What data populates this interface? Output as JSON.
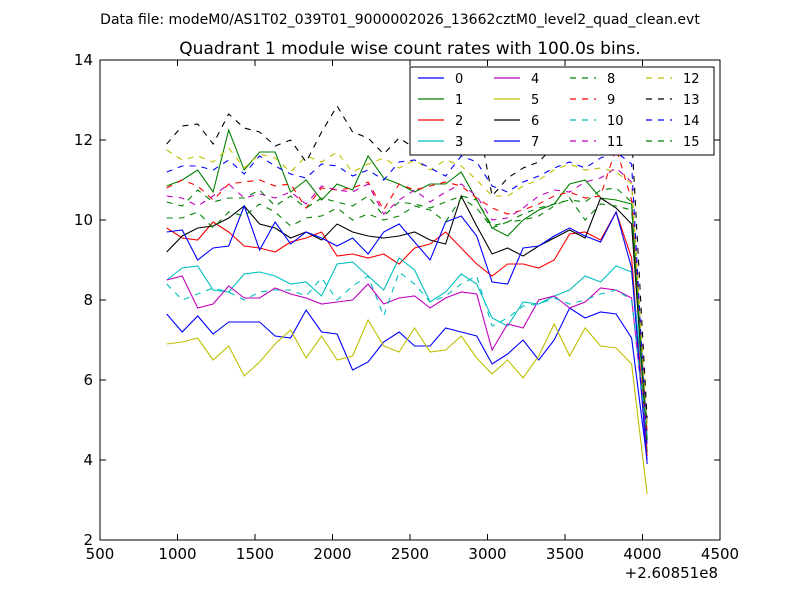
{
  "chart_data": {
    "type": "line",
    "suptitle": "Data file: modeM0/AS1T02_039T01_9000002026_13662cztM0_level2_quad_clean.evt",
    "title": "Quadrant 1 module wise count rates with 100.0s bins.",
    "xlabel": "",
    "ylabel": "",
    "xlim": [
      500,
      4500
    ],
    "ylim": [
      2,
      14
    ],
    "xticks": [
      500,
      1000,
      1500,
      2000,
      2500,
      3000,
      3500,
      4000,
      4500
    ],
    "yticks": [
      2,
      4,
      6,
      8,
      10,
      12,
      14
    ],
    "x_offset_label": "+2.60851e8",
    "legend_position": "top-right",
    "x": [
      930,
      1030,
      1130,
      1230,
      1330,
      1430,
      1530,
      1630,
      1730,
      1830,
      1930,
      2030,
      2130,
      2230,
      2330,
      2430,
      2530,
      2630,
      2730,
      2830,
      2930,
      3030,
      3130,
      3230,
      3330,
      3430,
      3530,
      3630,
      3730,
      3830,
      3930,
      4030
    ],
    "series": [
      {
        "name": "0",
        "color": "#0000ff",
        "dash": "solid",
        "values": [
          7.65,
          7.2,
          7.6,
          7.15,
          7.45,
          7.45,
          7.45,
          7.1,
          7.05,
          7.75,
          7.2,
          7.15,
          6.25,
          6.45,
          6.95,
          7.2,
          6.85,
          6.85,
          7.3,
          7.2,
          7.1,
          6.4,
          6.65,
          7.0,
          6.5,
          7.0,
          7.8,
          7.55,
          7.7,
          7.65,
          7.05,
          4.0
        ]
      },
      {
        "name": "1",
        "color": "#008000",
        "dash": "solid",
        "values": [
          10.85,
          11.0,
          11.25,
          10.7,
          12.25,
          11.25,
          11.7,
          11.7,
          10.7,
          11.0,
          10.5,
          10.9,
          10.75,
          11.6,
          11.05,
          10.9,
          10.7,
          10.9,
          10.9,
          11.2,
          10.5,
          9.8,
          9.6,
          10.0,
          10.25,
          10.4,
          10.9,
          11.0,
          10.55,
          10.5,
          10.4,
          4.2
        ]
      },
      {
        "name": "2",
        "color": "#ff0000",
        "dash": "solid",
        "values": [
          9.8,
          9.55,
          9.5,
          9.95,
          9.7,
          9.35,
          9.3,
          9.2,
          9.45,
          9.55,
          9.7,
          9.1,
          9.15,
          9.05,
          9.15,
          8.9,
          9.3,
          9.4,
          9.7,
          9.3,
          8.9,
          8.6,
          8.9,
          8.9,
          8.8,
          9.0,
          9.65,
          9.7,
          9.5,
          10.2,
          9.05,
          4.1
        ]
      },
      {
        "name": "3",
        "color": "#00bfbf",
        "dash": "solid",
        "values": [
          8.5,
          8.8,
          8.85,
          8.25,
          8.2,
          8.65,
          8.7,
          8.6,
          8.4,
          8.45,
          8.1,
          8.9,
          8.95,
          8.6,
          8.25,
          9.05,
          8.75,
          7.95,
          8.2,
          8.65,
          8.4,
          7.55,
          7.35,
          7.95,
          7.9,
          8.1,
          8.25,
          8.6,
          8.45,
          8.85,
          8.7,
          5.0
        ]
      },
      {
        "name": "4",
        "color": "#bf00bf",
        "dash": "solid",
        "values": [
          8.5,
          8.6,
          7.8,
          7.9,
          8.35,
          8.05,
          8.05,
          8.3,
          8.15,
          8.05,
          7.9,
          7.95,
          8.0,
          8.4,
          7.9,
          8.05,
          8.1,
          7.8,
          8.05,
          8.2,
          8.15,
          6.75,
          7.4,
          7.3,
          8.0,
          8.1,
          7.8,
          7.95,
          8.3,
          8.25,
          8.05,
          4.4
        ]
      },
      {
        "name": "5",
        "color": "#bfbf00",
        "dash": "solid",
        "values": [
          6.9,
          6.95,
          7.05,
          6.5,
          6.85,
          6.1,
          6.45,
          6.9,
          7.25,
          6.55,
          7.1,
          6.5,
          6.6,
          7.5,
          6.85,
          6.7,
          7.3,
          6.7,
          6.75,
          7.1,
          6.55,
          6.15,
          6.5,
          6.05,
          6.6,
          7.4,
          6.6,
          7.3,
          6.85,
          6.8,
          6.4,
          3.15
        ]
      },
      {
        "name": "6",
        "color": "#000000",
        "dash": "solid",
        "values": [
          9.2,
          9.6,
          9.8,
          9.85,
          10.05,
          10.35,
          9.9,
          9.8,
          9.55,
          9.7,
          9.5,
          9.9,
          9.7,
          9.6,
          9.55,
          9.6,
          9.7,
          9.5,
          9.4,
          10.6,
          9.85,
          9.15,
          9.3,
          9.1,
          9.35,
          9.55,
          9.75,
          9.55,
          10.55,
          10.3,
          9.9,
          4.5
        ]
      },
      {
        "name": "7",
        "color": "#0000ff",
        "dash": "solid",
        "values": [
          9.7,
          9.75,
          9.0,
          9.3,
          9.35,
          10.35,
          9.25,
          9.95,
          9.4,
          9.7,
          9.55,
          9.35,
          9.55,
          9.15,
          9.7,
          9.9,
          9.45,
          9.0,
          9.95,
          10.1,
          9.6,
          8.45,
          8.4,
          9.3,
          9.35,
          9.6,
          9.8,
          9.6,
          9.45,
          10.2,
          8.8,
          3.9
        ]
      },
      {
        "name": "8",
        "color": "#008000",
        "dash": "dashed",
        "values": [
          10.05,
          10.05,
          10.2,
          9.8,
          10.2,
          10.1,
          10.4,
          10.2,
          9.85,
          10.05,
          10.1,
          10.3,
          10.0,
          10.15,
          10.0,
          10.1,
          10.35,
          10.25,
          9.95,
          10.55,
          10.3,
          9.8,
          9.95,
          10.0,
          10.1,
          10.35,
          10.55,
          10.0,
          10.4,
          10.35,
          10.25,
          4.6
        ]
      },
      {
        "name": "9",
        "color": "#ff0000",
        "dash": "dashed",
        "values": [
          10.8,
          11.0,
          10.85,
          10.5,
          10.9,
          10.95,
          11.0,
          10.85,
          10.9,
          10.3,
          10.8,
          10.75,
          10.8,
          10.95,
          10.25,
          10.9,
          10.75,
          10.85,
          10.95,
          10.85,
          10.55,
          10.3,
          10.15,
          10.25,
          10.4,
          10.6,
          10.7,
          10.55,
          10.6,
          11.8,
          10.5,
          4.7
        ]
      },
      {
        "name": "10",
        "color": "#00bfbf",
        "dash": "dashed",
        "values": [
          8.4,
          8.0,
          8.15,
          8.3,
          8.2,
          8.0,
          8.2,
          8.25,
          8.25,
          8.1,
          8.55,
          8.0,
          8.35,
          8.6,
          7.6,
          8.7,
          8.4,
          7.95,
          8.1,
          8.4,
          8.6,
          7.35,
          7.55,
          7.85,
          7.9,
          8.05,
          7.9,
          8.0,
          8.15,
          8.25,
          8.0,
          4.6
        ]
      },
      {
        "name": "11",
        "color": "#bf00bf",
        "dash": "dashed",
        "values": [
          10.6,
          10.55,
          10.35,
          10.6,
          10.9,
          10.55,
          10.65,
          10.55,
          10.7,
          10.4,
          10.85,
          10.75,
          10.7,
          10.9,
          10.15,
          10.5,
          10.75,
          10.45,
          10.7,
          10.9,
          10.6,
          10.0,
          10.05,
          10.3,
          10.6,
          10.75,
          10.7,
          10.95,
          11.05,
          11.3,
          10.95,
          4.8
        ]
      },
      {
        "name": "12",
        "color": "#bfbf00",
        "dash": "dashed",
        "values": [
          11.75,
          11.5,
          11.6,
          11.45,
          11.8,
          11.3,
          11.65,
          11.55,
          11.2,
          11.6,
          11.45,
          11.7,
          11.2,
          11.4,
          11.55,
          11.3,
          11.5,
          11.25,
          11.5,
          11.35,
          11.0,
          10.6,
          10.6,
          10.85,
          11.0,
          11.25,
          11.4,
          11.25,
          11.3,
          11.2,
          10.9,
          4.9
        ]
      },
      {
        "name": "13",
        "color": "#000000",
        "dash": "dashed",
        "values": [
          11.9,
          12.35,
          12.4,
          11.9,
          12.65,
          12.3,
          12.2,
          11.85,
          12.0,
          11.45,
          12.2,
          12.85,
          12.2,
          12.05,
          11.65,
          12.05,
          11.8,
          11.7,
          12.0,
          12.25,
          12.7,
          10.6,
          11.05,
          11.3,
          11.45,
          11.85,
          12.3,
          12.2,
          12.4,
          12.55,
          12.15,
          5.05
        ]
      },
      {
        "name": "14",
        "color": "#0000ff",
        "dash": "dashed",
        "values": [
          11.2,
          11.35,
          11.35,
          11.25,
          11.5,
          11.15,
          11.6,
          11.35,
          11.15,
          11.05,
          11.4,
          11.35,
          11.1,
          11.25,
          11.0,
          11.45,
          11.5,
          11.3,
          11.1,
          11.6,
          11.45,
          10.85,
          10.7,
          10.95,
          11.1,
          11.3,
          11.45,
          11.3,
          11.55,
          11.7,
          11.4,
          4.3
        ]
      },
      {
        "name": "15",
        "color": "#008000",
        "dash": "dashed",
        "values": [
          10.45,
          10.35,
          10.75,
          10.45,
          10.55,
          10.55,
          10.75,
          10.35,
          10.6,
          10.3,
          10.55,
          10.45,
          10.35,
          10.6,
          10.1,
          10.45,
          10.4,
          10.3,
          10.45,
          10.6,
          10.5,
          9.85,
          9.95,
          10.15,
          10.3,
          10.4,
          10.5,
          10.45,
          10.75,
          10.8,
          10.45,
          4.4
        ]
      }
    ]
  }
}
